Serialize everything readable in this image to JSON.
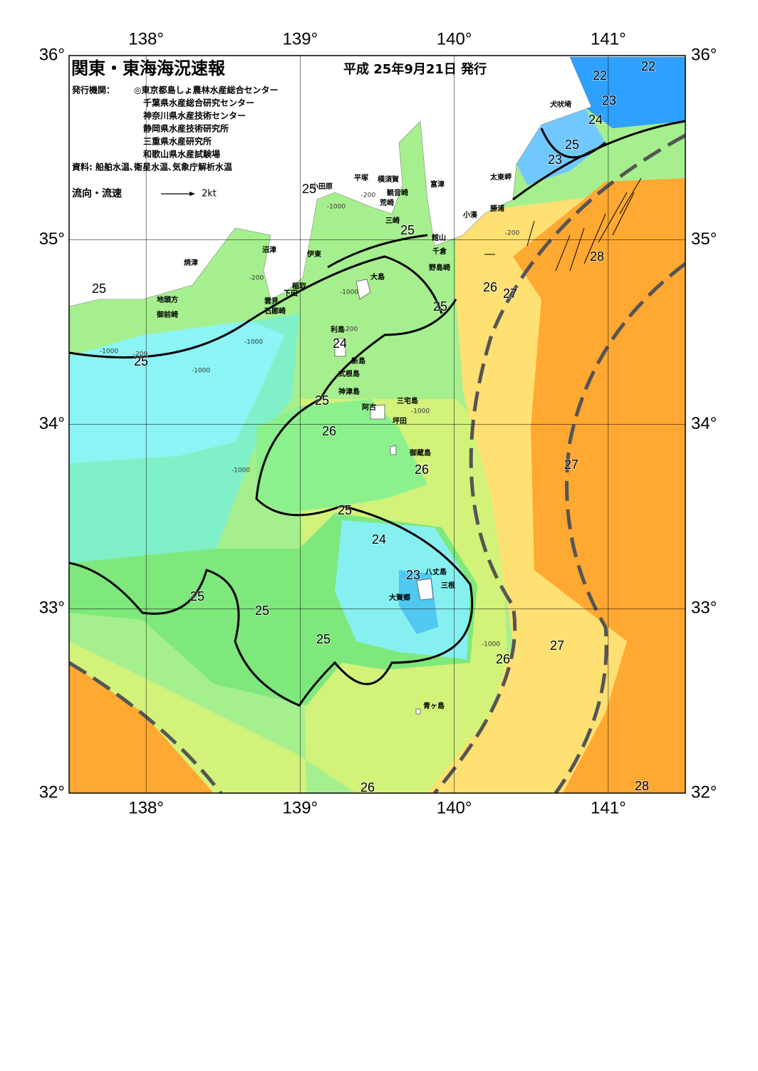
{
  "header": {
    "title": "関東・東海海況速報",
    "date": "平成 25年9月21日 発行"
  },
  "agencies": {
    "label": "発行機関：",
    "items": [
      "◎東京都島しょ農林水産総合センター",
      "千葉県水産総合研究センター",
      "神奈川県水産技術センター",
      "静岡県水産技術研究所",
      "三重県水産研究所",
      "和歌山県水産試験場"
    ]
  },
  "source": "資料: 船舶水温､衛星水温､気象庁解析水温",
  "legend": {
    "label": "流向・流速",
    "scale": "2kt"
  },
  "axes": {
    "lon_range": [
      137.5,
      141.5
    ],
    "lat_range": [
      32,
      36
    ],
    "lon_ticks": [
      {
        "value": 138,
        "label": "138°"
      },
      {
        "value": 139,
        "label": "139°"
      },
      {
        "value": 140,
        "label": "140°"
      },
      {
        "value": 141,
        "label": "141°"
      }
    ],
    "lat_ticks": [
      {
        "value": 32,
        "label": "32°"
      },
      {
        "value": 33,
        "label": "33°"
      },
      {
        "value": 34,
        "label": "34°"
      },
      {
        "value": 35,
        "label": "35°"
      },
      {
        "value": 36,
        "label": "36°"
      }
    ]
  },
  "places": [
    "犬吠埼",
    "太東岬",
    "勝浦",
    "小湊",
    "富津",
    "横須賀",
    "観音崎",
    "平塚",
    "小田原",
    "荒崎",
    "三崎",
    "館山",
    "千倉",
    "野島崎",
    "沼津",
    "伊東",
    "焼津",
    "稲取",
    "下田",
    "雲見",
    "石廊崎",
    "地頭方",
    "御前崎",
    "大島",
    "利島",
    "新島",
    "式根島",
    "神津島",
    "阿古",
    "三宅島",
    "坪田",
    "御蔵島",
    "八丈島",
    "三根",
    "大賀郷",
    "青ヶ島"
  ],
  "isotherm_labels": [
    22,
    22,
    23,
    24,
    25,
    23,
    25,
    25,
    28,
    25,
    26,
    27,
    25,
    24,
    25,
    25,
    26,
    26,
    27,
    25,
    24,
    23,
    25,
    25,
    25,
    27,
    26,
    26,
    28
  ],
  "depth_labels": [
    "-200",
    "-1000",
    "-200",
    "-1000",
    "-200",
    "-1000",
    "-200",
    "-1000",
    "-1000",
    "-1000",
    "-1000",
    "-200",
    "-1000"
  ]
}
